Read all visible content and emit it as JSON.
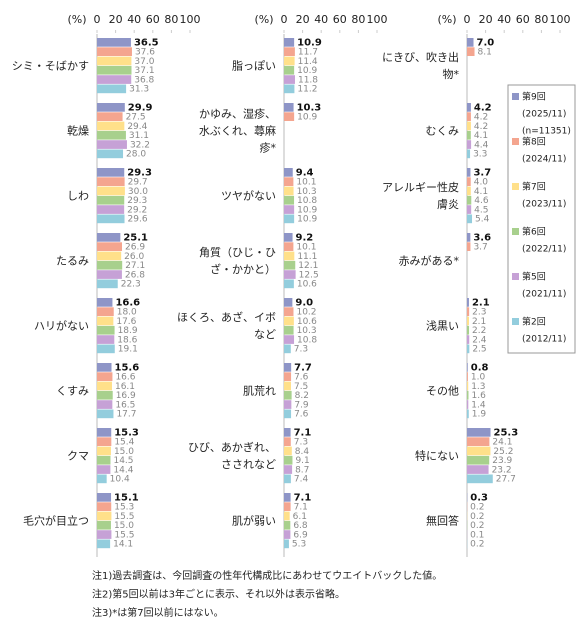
{
  "chart_data": [
    {
      "type": "bar",
      "orientation": "horizontal",
      "axis_label": "(%)",
      "xlim": [
        0,
        100
      ],
      "xticks": [
        0,
        20,
        40,
        60,
        80,
        100
      ],
      "categories": [
        [
          "シミ・そばかす"
        ],
        [
          "乾燥"
        ],
        [
          "しわ"
        ],
        [
          "たるみ"
        ],
        [
          "ハリがない"
        ],
        [
          "くすみ"
        ],
        [
          "クマ"
        ],
        [
          "毛穴が目立つ"
        ]
      ],
      "series": [
        {
          "values": [
            36.5,
            29.9,
            29.3,
            25.1,
            16.6,
            15.6,
            15.3,
            15.1
          ],
          "value_labels": [
            "36.5",
            "29.9",
            "29.3",
            "25.1",
            "16.6",
            "15.6",
            "15.3",
            "15.1"
          ]
        },
        {
          "values": [
            37.6,
            27.5,
            29.7,
            26.9,
            18.0,
            16.6,
            15.4,
            15.3
          ],
          "value_labels": [
            "37.6",
            "27.5",
            "29.7",
            "26.9",
            "18.0",
            "16.6",
            "15.4",
            "15.3"
          ]
        },
        {
          "values": [
            37.0,
            29.4,
            30.0,
            26.0,
            17.6,
            16.1,
            15.0,
            15.5
          ],
          "value_labels": [
            "37.0",
            "29.4",
            "30.0",
            "26.0",
            "17.6",
            "16.1",
            "15.0",
            "15.5"
          ]
        },
        {
          "values": [
            37.1,
            31.1,
            29.3,
            27.1,
            18.9,
            16.9,
            14.5,
            15.0
          ],
          "value_labels": [
            "37.1",
            "31.1",
            "29.3",
            "27.1",
            "18.9",
            "16.9",
            "14.5",
            "15.0"
          ]
        },
        {
          "values": [
            36.8,
            32.2,
            29.2,
            26.8,
            18.6,
            16.5,
            14.4,
            15.5
          ],
          "value_labels": [
            "36.8",
            "32.2",
            "29.2",
            "26.8",
            "18.6",
            "16.5",
            "14.4",
            "15.5"
          ]
        },
        {
          "values": [
            31.3,
            28.0,
            29.6,
            22.3,
            19.1,
            17.7,
            10.4,
            14.1
          ],
          "value_labels": [
            "31.3",
            "28.0",
            "29.6",
            "22.3",
            "19.1",
            "17.7",
            "10.4",
            "14.1"
          ]
        }
      ]
    },
    {
      "type": "bar",
      "orientation": "horizontal",
      "axis_label": "(%)",
      "xlim": [
        0,
        100
      ],
      "xticks": [
        0,
        20,
        40,
        60,
        80,
        100
      ],
      "categories": [
        [
          "脂っぽい"
        ],
        [
          "かゆみ、湿疹、",
          "水ぶくれ、蕁麻",
          "疹*"
        ],
        [
          "ツヤがない"
        ],
        [
          "角質（ひじ・ひ",
          "ざ・かかと）"
        ],
        [
          "ほくろ、あざ、イボ",
          "など"
        ],
        [
          "肌荒れ"
        ],
        [
          "ひび、あかぎれ、",
          "さされなど"
        ],
        [
          "肌が弱い"
        ]
      ],
      "series": [
        {
          "values": [
            10.9,
            10.3,
            9.4,
            9.2,
            9.0,
            7.7,
            7.1,
            7.1
          ],
          "value_labels": [
            "10.9",
            "10.3",
            "9.4",
            "9.2",
            "9.0",
            "7.7",
            "7.1",
            "7.1"
          ]
        },
        {
          "values": [
            11.7,
            10.9,
            10.1,
            10.1,
            10.2,
            7.6,
            7.3,
            7.1
          ],
          "value_labels": [
            "11.7",
            "10.9",
            "10.1",
            "10.1",
            "10.2",
            "7.6",
            "7.3",
            "7.1"
          ]
        },
        {
          "values": [
            11.4,
            null,
            10.3,
            11.1,
            10.6,
            7.5,
            8.4,
            6.1
          ],
          "value_labels": [
            "11.4",
            null,
            "10.3",
            "11.1",
            "10.6",
            "7.5",
            "8.4",
            "6.1"
          ]
        },
        {
          "values": [
            10.9,
            null,
            10.8,
            12.1,
            10.3,
            8.2,
            9.1,
            6.8
          ],
          "value_labels": [
            "10.9",
            null,
            "10.8",
            "12.1",
            "10.3",
            "8.2",
            "9.1",
            "6.8"
          ]
        },
        {
          "values": [
            11.8,
            null,
            10.9,
            12.5,
            10.8,
            7.9,
            8.7,
            6.9
          ],
          "value_labels": [
            "11.8",
            null,
            "10.9",
            "12.5",
            "10.8",
            "7.9",
            "8.7",
            "6.9"
          ]
        },
        {
          "values": [
            11.2,
            null,
            10.9,
            10.6,
            7.3,
            7.6,
            7.4,
            5.3
          ],
          "value_labels": [
            "11.2",
            null,
            "10.9",
            "10.6",
            "7.3",
            "7.6",
            "7.4",
            "5.3"
          ]
        }
      ]
    },
    {
      "type": "bar",
      "orientation": "horizontal",
      "axis_label": "(%)",
      "xlim": [
        0,
        100
      ],
      "xticks": [
        0,
        20,
        40,
        60,
        80,
        100
      ],
      "categories": [
        [
          "にきび、吹き出",
          "物*"
        ],
        [
          "むくみ"
        ],
        [
          "アレルギー性皮",
          "膚炎"
        ],
        [
          "赤みがある*"
        ],
        [
          "浅黒い"
        ],
        [
          "その他"
        ],
        [
          "特にない"
        ],
        [
          "無回答"
        ]
      ],
      "series": [
        {
          "values": [
            7.0,
            4.2,
            3.7,
            3.6,
            2.1,
            0.8,
            25.3,
            0.3
          ],
          "value_labels": [
            "7.0",
            "4.2",
            "3.7",
            "3.6",
            "2.1",
            "0.8",
            "25.3",
            "0.3"
          ]
        },
        {
          "values": [
            8.1,
            4.2,
            4.0,
            3.7,
            2.3,
            1.0,
            24.1,
            0.2
          ],
          "value_labels": [
            "8.1",
            "4.2",
            "4.0",
            "3.7",
            "2.3",
            "1.0",
            "24.1",
            "0.2"
          ]
        },
        {
          "values": [
            null,
            4.2,
            4.1,
            null,
            2.1,
            1.3,
            25.2,
            0.2
          ],
          "value_labels": [
            null,
            "4.2",
            "4.1",
            null,
            "2.1",
            "1.3",
            "25.2",
            "0.2"
          ]
        },
        {
          "values": [
            null,
            4.1,
            4.6,
            null,
            2.2,
            1.6,
            23.9,
            0.2
          ],
          "value_labels": [
            null,
            "4.1",
            "4.6",
            null,
            "2.2",
            "1.6",
            "23.9",
            "0.2"
          ]
        },
        {
          "values": [
            null,
            4.4,
            4.5,
            null,
            2.4,
            1.4,
            23.2,
            0.1
          ],
          "value_labels": [
            null,
            "4.4",
            "4.5",
            null,
            "2.4",
            "1.4",
            "23.2",
            "0.1"
          ]
        },
        {
          "values": [
            null,
            3.3,
            5.4,
            null,
            2.5,
            1.9,
            27.7,
            0.2
          ],
          "value_labels": [
            null,
            "3.3",
            "5.4",
            null,
            "2.5",
            "1.9",
            "27.7",
            "0.2"
          ]
        }
      ]
    }
  ],
  "legend": {
    "position": "right",
    "entries": [
      {
        "name": "第9回",
        "period": "(2025/11)",
        "note": "(n=11351)",
        "color": "#8e95c7"
      },
      {
        "name": "第8回",
        "period": "(2024/11)",
        "color": "#f4a58f"
      },
      {
        "name": "第7回",
        "period": "(2023/11)",
        "color": "#ffe08a"
      },
      {
        "name": "第6回",
        "period": "(2022/11)",
        "color": "#a8d08d"
      },
      {
        "name": "第5回",
        "period": "(2021/11)",
        "color": "#c6a1d6"
      },
      {
        "name": "第2回",
        "period": "(2012/11)",
        "color": "#93cddd"
      }
    ]
  },
  "notes": [
    "注1)過去調査は、今回調査の性年代構成比にあわせてウエイトバックした値。",
    "注2)第5回以前は3年ごとに表示、それ以外は表示省略。",
    "注3)*は第7回以前にはない。"
  ]
}
